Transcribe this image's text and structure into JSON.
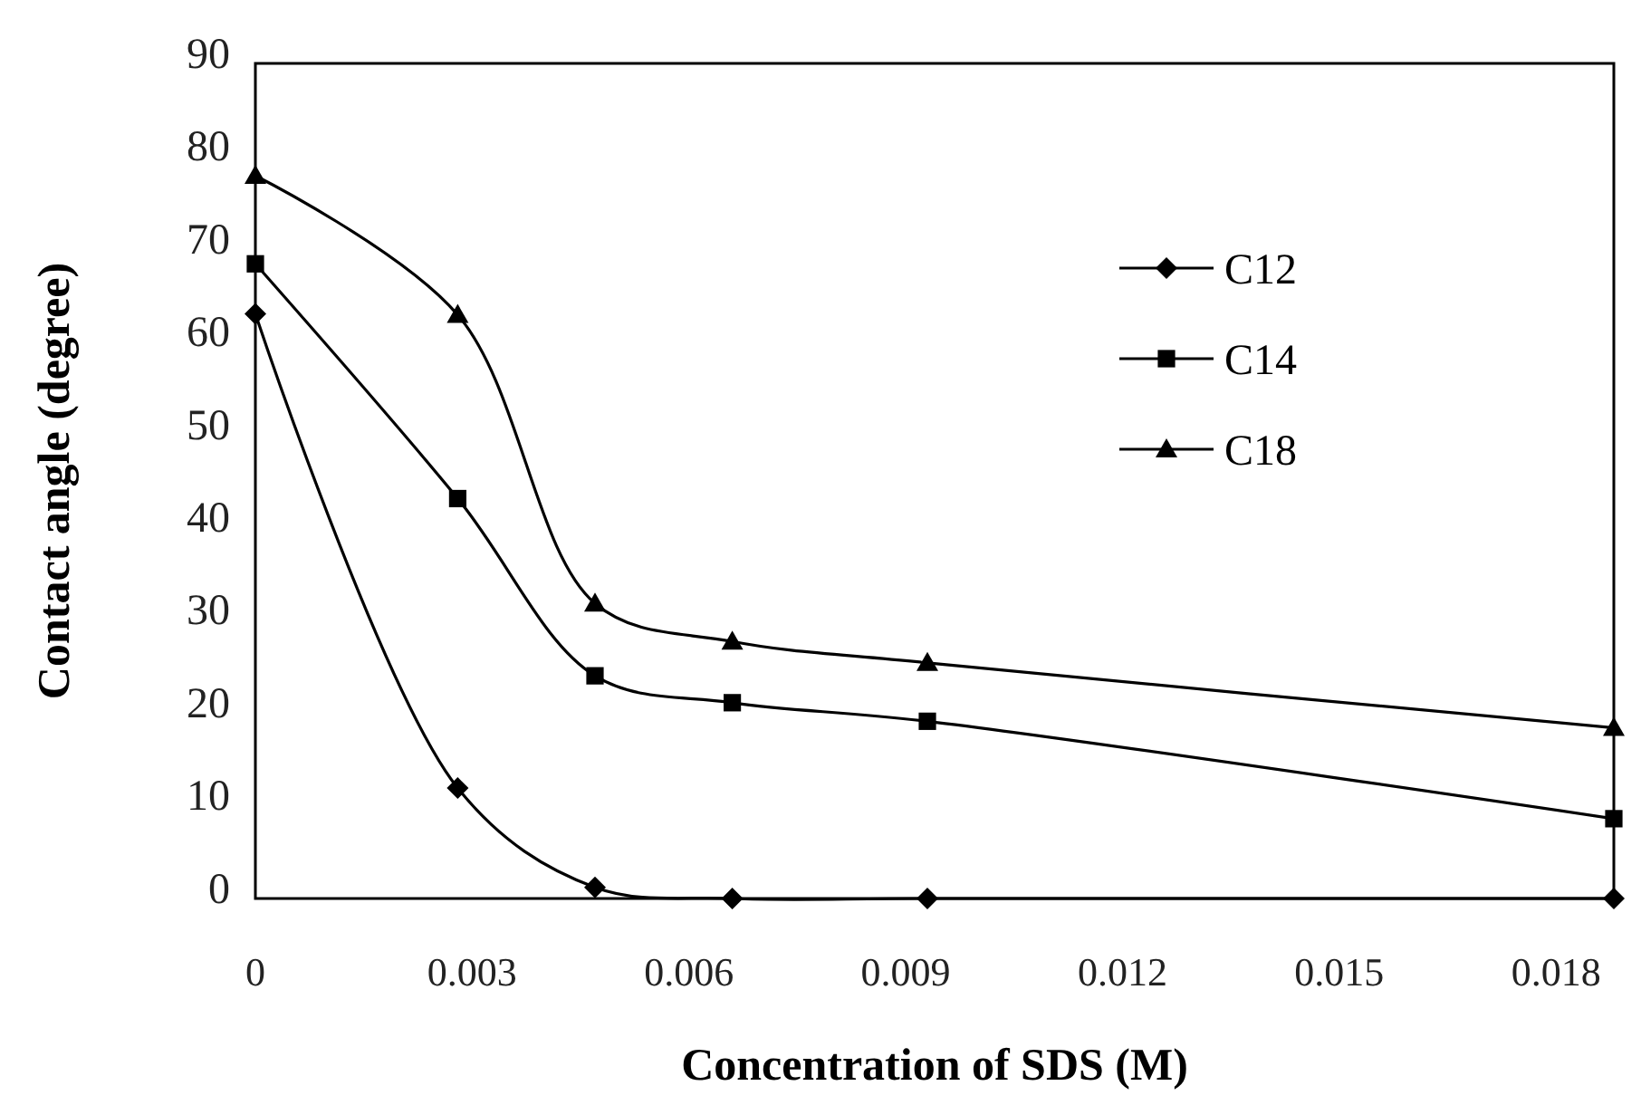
{
  "chart_data": {
    "type": "line",
    "xlabel": "Concentration of SDS (M)",
    "ylabel": "Contact angle (degree)",
    "x": [
      0,
      0.0028,
      0.0047,
      0.0066,
      0.0093,
      0.0188
    ],
    "series": [
      {
        "name": "C12",
        "color": "#000000",
        "marker": "diamond",
        "values": [
          63,
          11.9,
          1.2,
          0,
          0,
          0
        ]
      },
      {
        "name": "C14",
        "color": "#000000",
        "marker": "square",
        "values": [
          68.4,
          43.1,
          24,
          21.1,
          19.1,
          8.6
        ]
      },
      {
        "name": "C18",
        "color": "#000000",
        "marker": "triangle",
        "values": [
          77.9,
          62.9,
          31.8,
          27.7,
          25.4,
          18.4
        ]
      }
    ],
    "xlim": [
      0,
      0.0188
    ],
    "xticks": [
      0,
      0.003,
      0.006,
      0.009,
      0.012,
      0.015,
      0.018
    ],
    "ylim": [
      0,
      90
    ],
    "yticks": [
      0,
      10,
      20,
      30,
      40,
      50,
      60,
      70,
      80,
      90
    ],
    "grid": false,
    "legend": "top right",
    "line_style": "solid"
  }
}
